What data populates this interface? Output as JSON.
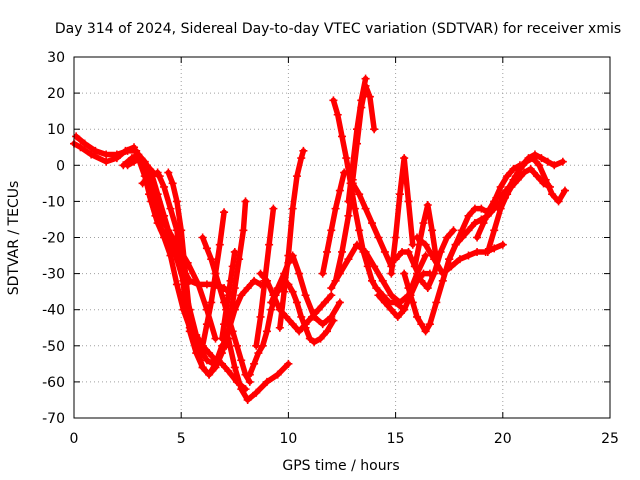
{
  "chart_data": {
    "type": "scatter",
    "title": "Day 314 of 2024, Sidereal Day-to-day VTEC variation (SDTVAR) for receiver xmis",
    "xlabel": "GPS time / hours",
    "ylabel": "SDTVAR / TECUs",
    "xlim": [
      0,
      25
    ],
    "ylim": [
      -70,
      30
    ],
    "xticks": [
      0,
      5,
      10,
      15,
      20,
      25
    ],
    "yticks": [
      -70,
      -60,
      -50,
      -40,
      -30,
      -20,
      -10,
      0,
      10,
      20,
      30
    ],
    "grid": true,
    "marker": "+",
    "color": "#ff0000",
    "series": [
      {
        "name": "s1",
        "x": [
          0.0,
          0.3,
          0.8,
          1.5,
          2.0,
          2.4,
          2.8,
          3.0,
          3.3,
          3.6,
          3.9,
          4.2,
          4.5,
          4.8,
          5.1,
          5.4,
          5.8,
          6.2,
          6.5
        ],
        "y": [
          6,
          5,
          3,
          1,
          2,
          4,
          5,
          2,
          -3,
          -10,
          -16,
          -20,
          -25,
          -33,
          -40,
          -45,
          -50,
          -54,
          -55
        ]
      },
      {
        "name": "s2",
        "x": [
          0.1,
          0.5,
          1.0,
          1.5,
          2.0,
          2.5,
          2.9,
          3.2,
          3.5,
          3.8,
          4.1,
          4.4,
          4.8,
          5.3,
          5.8,
          6.2,
          6.6
        ],
        "y": [
          8,
          6,
          4,
          3,
          3,
          4,
          4,
          1,
          -4,
          -10,
          -15,
          -18,
          -22,
          -27,
          -33,
          -40,
          -48
        ]
      },
      {
        "name": "s3",
        "x": [
          2.3,
          2.7,
          3.0,
          3.3,
          3.6,
          3.9,
          4.2,
          4.5,
          4.8,
          5.1,
          5.4,
          5.7,
          6.0,
          6.3,
          6.6,
          6.9,
          7.2,
          7.6,
          8.0
        ],
        "y": [
          0,
          2,
          3,
          1,
          -2,
          -8,
          -14,
          -20,
          -26,
          -32,
          -40,
          -47,
          -50,
          -52,
          -54,
          -55,
          -57,
          -60,
          -62
        ]
      },
      {
        "name": "s4",
        "x": [
          3.2,
          3.6,
          3.9,
          4.2,
          4.5,
          4.8,
          5.0,
          5.2,
          5.4,
          5.7,
          6.0,
          6.3,
          6.6,
          6.9,
          7.2,
          7.5,
          7.8,
          8.1,
          8.4,
          8.7
        ],
        "y": [
          -5,
          -3,
          -2,
          -6,
          -12,
          -18,
          -28,
          -38,
          -46,
          -52,
          -56,
          -58,
          -56,
          -52,
          -46,
          -40,
          -36,
          -34,
          -32,
          -33
        ]
      },
      {
        "name": "s5",
        "x": [
          4.4,
          4.6,
          4.8,
          5.0,
          5.2,
          5.4,
          5.7,
          6.0,
          6.3,
          6.6,
          6.9,
          7.2,
          7.5,
          7.8,
          8.1,
          8.5,
          9.0,
          9.5,
          10.0
        ],
        "y": [
          -2,
          -5,
          -10,
          -18,
          -30,
          -42,
          -50,
          -56,
          -58,
          -55,
          -50,
          -48,
          -56,
          -62,
          -65,
          -63,
          -60,
          -58,
          -55
        ]
      },
      {
        "name": "s6",
        "x": [
          3.5,
          3.8,
          4.1,
          4.4,
          4.7,
          5.0,
          5.4,
          5.8,
          6.2,
          6.6,
          7.0,
          7.4
        ],
        "y": [
          -8,
          -14,
          -18,
          -20,
          -24,
          -28,
          -32,
          -33,
          -33,
          -33,
          -34,
          -36
        ]
      },
      {
        "name": "s7",
        "x": [
          6.0,
          6.2,
          6.4,
          6.6,
          6.8,
          7.0,
          7.2,
          7.4,
          7.6,
          7.8,
          8.0,
          8.2
        ],
        "y": [
          -20,
          -23,
          -26,
          -30,
          -34,
          -38,
          -42,
          -46,
          -50,
          -54,
          -58,
          -60
        ]
      },
      {
        "name": "s8",
        "x": [
          6.0,
          6.2,
          6.4,
          6.6,
          6.8,
          7.0
        ],
        "y": [
          -50,
          -44,
          -38,
          -30,
          -22,
          -13
        ]
      },
      {
        "name": "s9",
        "x": [
          7.1,
          7.3,
          7.5,
          7.7,
          7.9,
          8.0
        ],
        "y": [
          -50,
          -42,
          -34,
          -26,
          -18,
          -10
        ]
      },
      {
        "name": "s10",
        "x": [
          6.9,
          7.0,
          7.1,
          7.2,
          7.3,
          7.4,
          7.5
        ],
        "y": [
          -48,
          -44,
          -40,
          -36,
          -32,
          -28,
          -24
        ]
      },
      {
        "name": "s11",
        "x": [
          8.2,
          8.4,
          8.6,
          8.8,
          9.0,
          9.2,
          9.4,
          9.6,
          9.8,
          10.0,
          10.2,
          10.4,
          10.6,
          10.8,
          11.0,
          11.2,
          11.5,
          11.8,
          12.1
        ],
        "y": [
          -58,
          -55,
          -52,
          -50,
          -46,
          -40,
          -36,
          -34,
          -33,
          -33,
          -35,
          -38,
          -42,
          -45,
          -48,
          -49,
          -48,
          -46,
          -43
        ]
      },
      {
        "name": "s12",
        "x": [
          8.5,
          8.7,
          8.9,
          9.1,
          9.3
        ],
        "y": [
          -50,
          -42,
          -32,
          -22,
          -12
        ]
      },
      {
        "name": "s13",
        "x": [
          9.6,
          9.8,
          10.0,
          10.2,
          10.4,
          10.6,
          10.7
        ],
        "y": [
          -45,
          -35,
          -25,
          -12,
          -3,
          2,
          4
        ]
      },
      {
        "name": "s14",
        "x": [
          8.7,
          9.0,
          9.3,
          9.6,
          9.9,
          10.2,
          10.5,
          10.8,
          11.1,
          11.4,
          11.7,
          12.0
        ],
        "y": [
          -30,
          -32,
          -36,
          -40,
          -42,
          -44,
          -46,
          -44,
          -42,
          -40,
          -38,
          -36
        ]
      },
      {
        "name": "s15",
        "x": [
          9.2,
          9.5,
          9.8,
          10.0,
          10.2,
          10.5,
          10.8,
          11.2,
          11.6,
          12.0,
          12.4
        ],
        "y": [
          -38,
          -34,
          -30,
          -27,
          -25,
          -30,
          -36,
          -42,
          -44,
          -42,
          -38
        ]
      },
      {
        "name": "s16",
        "x": [
          11.6,
          11.8,
          12.0,
          12.2,
          12.4,
          12.6
        ],
        "y": [
          -30,
          -24,
          -18,
          -12,
          -7,
          -2
        ]
      },
      {
        "name": "s17",
        "x": [
          12.1,
          12.3,
          12.5,
          12.7,
          12.9,
          13.1,
          13.3,
          13.5,
          13.7,
          13.9,
          14.1,
          14.4,
          14.7,
          15.0,
          15.4
        ],
        "y": [
          18,
          14,
          8,
          2,
          -5,
          -12,
          -18,
          -24,
          -28,
          -32,
          -34,
          -36,
          -38,
          -38,
          -40
        ]
      },
      {
        "name": "s18",
        "x": [
          12.2,
          12.5,
          12.8,
          13.0,
          13.2,
          13.4,
          13.6,
          13.8,
          14.0
        ],
        "y": [
          -32,
          -24,
          -14,
          -4,
          6,
          16,
          22,
          19,
          10
        ]
      },
      {
        "name": "s19",
        "x": [
          12.8,
          13.0,
          13.2,
          13.4,
          13.6
        ],
        "y": [
          -10,
          0,
          10,
          18,
          24
        ]
      },
      {
        "name": "s20",
        "x": [
          13.0,
          13.3,
          13.6,
          13.9,
          14.2,
          14.5,
          14.8
        ],
        "y": [
          -5,
          -8,
          -12,
          -16,
          -20,
          -24,
          -28
        ]
      },
      {
        "name": "s21",
        "x": [
          12.0,
          12.4,
          12.8,
          13.2,
          13.6,
          14.0,
          14.4,
          14.8,
          15.2,
          15.6,
          16.0,
          16.4
        ],
        "y": [
          -34,
          -30,
          -26,
          -22,
          -24,
          -28,
          -32,
          -36,
          -38,
          -36,
          -30,
          -25
        ]
      },
      {
        "name": "s22",
        "x": [
          14.8,
          15.0,
          15.2,
          15.4,
          15.6,
          15.8
        ],
        "y": [
          -30,
          -20,
          -8,
          2,
          -10,
          -22
        ]
      },
      {
        "name": "s23",
        "x": [
          15.0,
          15.3,
          15.6,
          15.9,
          16.2,
          16.5,
          16.8,
          17.1,
          17.4,
          17.7
        ],
        "y": [
          -26,
          -24,
          -24,
          -28,
          -32,
          -34,
          -30,
          -24,
          -20,
          -18
        ]
      },
      {
        "name": "s24",
        "x": [
          15.4,
          15.6,
          15.8,
          16.0,
          16.2,
          16.4,
          16.6,
          16.9,
          17.2,
          17.5,
          17.8,
          18.1,
          18.4,
          18.7,
          19.0,
          19.3,
          19.6,
          19.9,
          20.2,
          20.5
        ],
        "y": [
          -30,
          -34,
          -38,
          -42,
          -44,
          -46,
          -44,
          -38,
          -32,
          -26,
          -22,
          -20,
          -18,
          -16,
          -15,
          -14,
          -12,
          -10,
          -7,
          -5
        ]
      },
      {
        "name": "s25",
        "x": [
          14.2,
          14.5,
          14.8,
          15.1,
          15.4,
          15.7,
          16.0,
          16.3,
          16.6
        ],
        "y": [
          -36,
          -38,
          -40,
          -42,
          -40,
          -36,
          -32,
          -30,
          -30
        ]
      },
      {
        "name": "s26",
        "x": [
          15.9,
          16.1,
          16.3,
          16.5,
          16.7,
          16.9
        ],
        "y": [
          -28,
          -22,
          -16,
          -11,
          -18,
          -26
        ]
      },
      {
        "name": "s27",
        "x": [
          16.0,
          16.4,
          16.8,
          17.2,
          17.6,
          18.0,
          18.4,
          18.8,
          19.2,
          19.6,
          20.0
        ],
        "y": [
          -20,
          -22,
          -26,
          -30,
          -28,
          -26,
          -25,
          -24,
          -24,
          -23,
          -22
        ]
      },
      {
        "name": "s28",
        "x": [
          17.5,
          17.8,
          18.1,
          18.4,
          18.7,
          19.0,
          19.3,
          19.6,
          19.9,
          20.2,
          20.5,
          20.8
        ],
        "y": [
          -26,
          -22,
          -18,
          -14,
          -12,
          -12,
          -13,
          -10,
          -6,
          -3,
          -1,
          0
        ]
      },
      {
        "name": "s29",
        "x": [
          19.3,
          19.6,
          19.9,
          20.2,
          20.5,
          20.8,
          21.1,
          21.4,
          21.7,
          22.0,
          22.3,
          22.6,
          22.9
        ],
        "y": [
          -24,
          -18,
          -12,
          -8,
          -4,
          -1,
          1,
          2,
          0,
          -4,
          -8,
          -10,
          -7
        ]
      },
      {
        "name": "s30",
        "x": [
          18.8,
          19.1,
          19.4,
          19.7,
          20.0,
          20.3,
          20.6,
          20.9,
          21.2,
          21.5,
          21.8,
          22.1,
          22.4,
          22.8
        ],
        "y": [
          -20,
          -16,
          -12,
          -9,
          -8,
          -6,
          -3,
          0,
          2,
          3,
          2,
          1,
          0,
          1
        ]
      },
      {
        "name": "s31",
        "x": [
          19.8,
          20.1,
          20.4,
          20.7,
          21.0,
          21.3,
          21.6,
          21.9,
          22.2
        ],
        "y": [
          -12,
          -9,
          -6,
          -4,
          -2,
          -1,
          -3,
          -5,
          -6
        ]
      },
      {
        "name": "s32",
        "x": [
          2.5,
          2.8,
          3.1,
          3.4,
          3.7,
          4.0
        ],
        "y": [
          0,
          1,
          2,
          0,
          -2,
          -3
        ]
      }
    ]
  }
}
